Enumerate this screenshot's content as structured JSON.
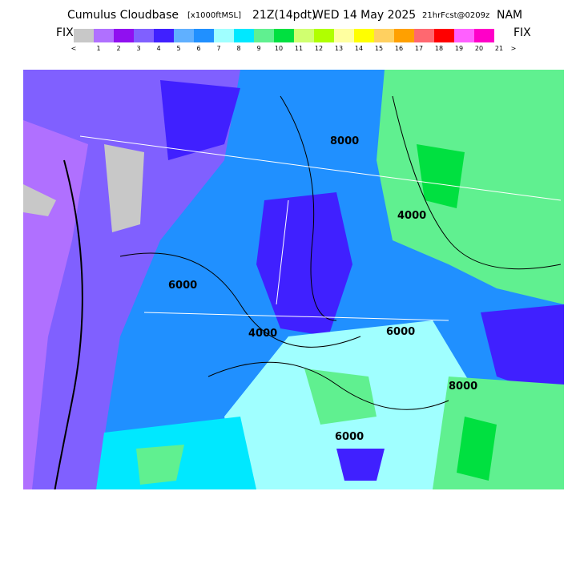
{
  "header": {
    "title": "Cumulus Cloudbase",
    "units": "[x1000ftMSL]",
    "time": "21Z(14pdt)",
    "date": "WED 14 May 2025",
    "forecast": "21hrFcst@0209z",
    "model": "NAM"
  },
  "colorbar": {
    "left_label": "FIX",
    "right_label": "FIX",
    "colors": [
      "#c8c8c8",
      "#b070ff",
      "#9010f0",
      "#8060ff",
      "#4020ff",
      "#60b0ff",
      "#2090ff",
      "#a0ffff",
      "#00e8ff",
      "#60f090",
      "#00e040",
      "#d0ff70",
      "#b0ff00",
      "#ffffa0",
      "#ffff00",
      "#ffd060",
      "#ffa000",
      "#ff6870",
      "#ff0000",
      "#ff60ff",
      "#ff00c8"
    ],
    "labels": [
      "<",
      "1",
      "2",
      "3",
      "4",
      "5",
      "6",
      "7",
      "8",
      "9",
      "10",
      "11",
      "12",
      "13",
      "14",
      "15",
      "16",
      "17",
      "18",
      "19",
      "20",
      "21",
      ">"
    ]
  },
  "map": {
    "contour_labels": [
      "6000",
      "4000",
      "6000",
      "8000",
      "6000",
      "4000",
      "8000"
    ]
  }
}
